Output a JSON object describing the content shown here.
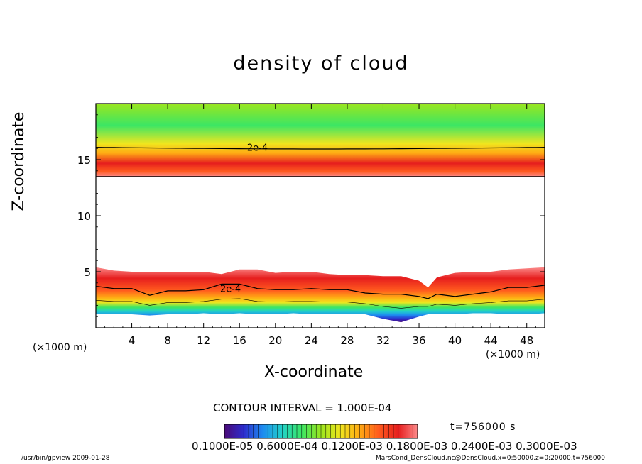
{
  "title": "density of cloud",
  "xlabel": "X-coordinate",
  "ylabel": "Z-coordinate",
  "x_unit_left": "(×1000 m)",
  "x_unit_right": "(×1000 m)",
  "contour_interval": "CONTOUR INTERVAL = 1.000E-04",
  "time_label": "t=756000 s",
  "colorbar_ticks": "0.1000E-05 0.6000E-04 0.1200E-03 0.1800E-03 0.2400E-03 0.3000E-03",
  "footer_left": "/usr/bin/gpview  2009-01-28",
  "footer_right": "MarsCond_DensCloud.nc@DensCloud,x=0:50000,z=0:20000,t=756000",
  "colors": {
    "colormap": [
      "#4b0a78",
      "#2c2ccc",
      "#1e8cf0",
      "#22d2c8",
      "#3ce664",
      "#9be61e",
      "#f0e61e",
      "#ffaa14",
      "#ff5a1e",
      "#e61e1e",
      "#fc8a8a"
    ],
    "contour": "#000000"
  },
  "chart_data": {
    "type": "heatmap",
    "title": "density of cloud",
    "xlabel": "X-coordinate",
    "ylabel": "Z-coordinate",
    "xlim": [
      0,
      50
    ],
    "ylim": [
      0,
      20
    ],
    "x_ticks": [
      4,
      8,
      12,
      16,
      20,
      24,
      28,
      32,
      36,
      40,
      44,
      48
    ],
    "y_ticks": [
      5,
      10,
      15
    ],
    "colorbar_range": [
      1e-06,
      0.0003
    ],
    "upper_layer": {
      "bottom_z": 13.5,
      "peak_z": 14.6,
      "contour_2e-4_z": 16.1
    },
    "lower_layer": {
      "x": [
        0,
        2,
        4,
        6,
        8,
        10,
        12,
        14,
        16,
        18,
        20,
        22,
        24,
        26,
        28,
        30,
        32,
        34,
        36,
        37,
        38,
        40,
        42,
        44,
        46,
        48,
        50
      ],
      "top_z": [
        5.4,
        5.1,
        5.0,
        5.0,
        5.0,
        5.0,
        5.0,
        4.8,
        5.2,
        5.2,
        4.9,
        5.0,
        5.0,
        4.8,
        4.7,
        4.7,
        4.6,
        4.6,
        4.2,
        3.6,
        4.5,
        4.9,
        5.0,
        5.0,
        5.2,
        5.3,
        5.4
      ],
      "contour_2e-4_z": [
        3.7,
        3.5,
        3.5,
        2.9,
        3.3,
        3.3,
        3.4,
        3.9,
        3.9,
        3.5,
        3.4,
        3.4,
        3.5,
        3.4,
        3.4,
        3.1,
        3.0,
        3.0,
        2.8,
        2.6,
        3.0,
        2.8,
        3.0,
        3.2,
        3.6,
        3.6,
        3.8
      ],
      "bottom_z": [
        1.2,
        1.2,
        1.2,
        1.1,
        1.2,
        1.2,
        1.3,
        1.2,
        1.3,
        1.2,
        1.2,
        1.3,
        1.2,
        1.2,
        1.2,
        1.2,
        0.8,
        0.5,
        1.0,
        1.2,
        1.2,
        1.2,
        1.3,
        1.3,
        1.2,
        1.2,
        1.3
      ]
    },
    "contour_labels": [
      {
        "text": "2e-4",
        "x": 18,
        "z": 16.1
      },
      {
        "text": "2e-4",
        "x": 15,
        "z": 3.5
      }
    ]
  }
}
